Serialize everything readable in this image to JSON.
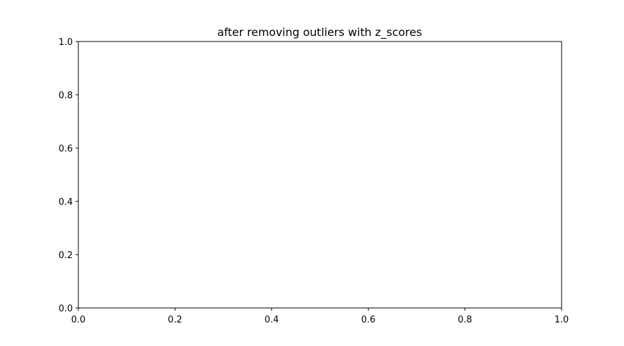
{
  "chart_data": {
    "type": "scatter",
    "title": "after removing outliers with z_scores",
    "xlabel": "",
    "ylabel": "",
    "xlim": [
      0.0,
      1.0
    ],
    "ylim": [
      0.0,
      1.0
    ],
    "x_ticks": [
      "0.0",
      "0.2",
      "0.4",
      "0.6",
      "0.8",
      "1.0"
    ],
    "y_ticks": [
      "0.0",
      "0.2",
      "0.4",
      "0.6",
      "0.8",
      "1.0"
    ],
    "grid": false,
    "legend": "none",
    "series": []
  },
  "colors": {
    "background": "#ffffff",
    "axes": "#000000",
    "text": "#000000"
  }
}
